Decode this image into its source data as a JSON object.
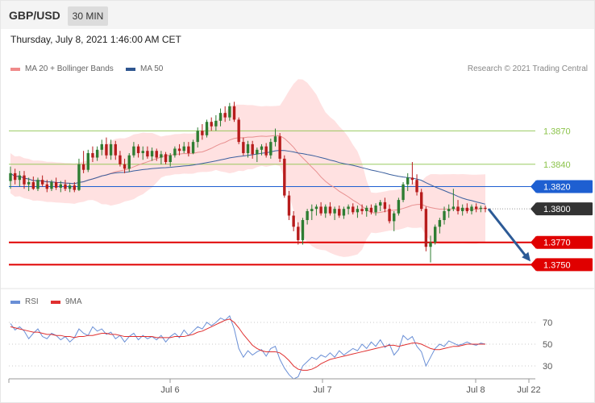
{
  "header": {
    "symbol": "GBP/USD",
    "timeframe": "30 MIN",
    "datetime": "Thursday, July 8, 2021 1:46:00 AM CET"
  },
  "legend": {
    "ma20_label": "MA 20 + Bollinger Bands",
    "ma50_label": "MA 50",
    "rsi_label": "RSI",
    "ma9_label": "9MA",
    "credit": "Research © 2021 Trading Central"
  },
  "colors": {
    "up": "#2e7d32",
    "down": "#b71c1c",
    "band": "#ffd7d7",
    "ma20": "#e89090",
    "ma50": "#3a5f9e",
    "support": "#e00000",
    "resistance_green": "#8bc34a",
    "pivot_blue": "#1e5fd1",
    "current": "#333333",
    "rsi": "#6a8fd6",
    "rsi_ma": "#e03030",
    "arrow": "#2c5a96"
  },
  "chart_data": {
    "type": "candlestick",
    "price_levels": [
      {
        "value": 1.387,
        "label": "1.3870",
        "kind": "resistance"
      },
      {
        "value": 1.384,
        "label": "1.3840",
        "kind": "resistance"
      },
      {
        "value": 1.382,
        "label": "1.3820",
        "kind": "pivot"
      },
      {
        "value": 1.38,
        "label": "1.3800",
        "kind": "current"
      },
      {
        "value": 1.377,
        "label": "1.3770",
        "kind": "support"
      },
      {
        "value": 1.375,
        "label": "1.3750",
        "kind": "support"
      }
    ],
    "y_range": [
      1.3738,
      1.3915
    ],
    "x_ticks": [
      "Jul 6",
      "Jul 7",
      "Jul 8",
      "Jul 22"
    ],
    "candles": [
      [
        1.3825,
        1.3838,
        1.3818,
        1.3832
      ],
      [
        1.3832,
        1.3836,
        1.3822,
        1.3826
      ],
      [
        1.3826,
        1.3834,
        1.382,
        1.383
      ],
      [
        1.383,
        1.3834,
        1.3818,
        1.3822
      ],
      [
        1.3822,
        1.3828,
        1.3816,
        1.3824
      ],
      [
        1.3824,
        1.3829,
        1.3817,
        1.3818
      ],
      [
        1.3818,
        1.3828,
        1.3816,
        1.3826
      ],
      [
        1.3826,
        1.383,
        1.382,
        1.3822
      ],
      [
        1.3822,
        1.3826,
        1.3815,
        1.3818
      ],
      [
        1.3818,
        1.3826,
        1.3816,
        1.3824
      ],
      [
        1.3824,
        1.3828,
        1.3817,
        1.3819
      ],
      [
        1.3819,
        1.3825,
        1.3815,
        1.3822
      ],
      [
        1.3822,
        1.3826,
        1.3816,
        1.3818
      ],
      [
        1.3818,
        1.3823,
        1.3815,
        1.3821
      ],
      [
        1.3821,
        1.3824,
        1.3815,
        1.3817
      ],
      [
        1.3817,
        1.3845,
        1.3816,
        1.384
      ],
      [
        1.384,
        1.3852,
        1.3832,
        1.3835
      ],
      [
        1.3835,
        1.3853,
        1.3833,
        1.385
      ],
      [
        1.385,
        1.3856,
        1.3842,
        1.3846
      ],
      [
        1.3846,
        1.3856,
        1.3843,
        1.3853
      ],
      [
        1.3853,
        1.3862,
        1.3848,
        1.3858
      ],
      [
        1.3858,
        1.3864,
        1.3845,
        1.3848
      ],
      [
        1.3848,
        1.3862,
        1.3844,
        1.3858
      ],
      [
        1.3858,
        1.3861,
        1.3844,
        1.3848
      ],
      [
        1.3848,
        1.3852,
        1.3838,
        1.384
      ],
      [
        1.384,
        1.3845,
        1.3832,
        1.3836
      ],
      [
        1.3836,
        1.385,
        1.3833,
        1.3848
      ],
      [
        1.3848,
        1.386,
        1.3846,
        1.3856
      ],
      [
        1.3856,
        1.3858,
        1.3846,
        1.385
      ],
      [
        1.385,
        1.3856,
        1.3844,
        1.3852
      ],
      [
        1.3852,
        1.3856,
        1.3845,
        1.3847
      ],
      [
        1.3847,
        1.3855,
        1.3843,
        1.3852
      ],
      [
        1.3852,
        1.3854,
        1.3843,
        1.3846
      ],
      [
        1.3846,
        1.3852,
        1.384,
        1.3849
      ],
      [
        1.3849,
        1.3851,
        1.384,
        1.3842
      ],
      [
        1.3842,
        1.385,
        1.3838,
        1.3848
      ],
      [
        1.3848,
        1.3856,
        1.3846,
        1.3854
      ],
      [
        1.3854,
        1.3858,
        1.3848,
        1.3852
      ],
      [
        1.3852,
        1.386,
        1.385,
        1.3856
      ],
      [
        1.3856,
        1.386,
        1.3847,
        1.385
      ],
      [
        1.385,
        1.3862,
        1.3849,
        1.386
      ],
      [
        1.386,
        1.3873,
        1.3855,
        1.387
      ],
      [
        1.387,
        1.3876,
        1.3862,
        1.3866
      ],
      [
        1.3866,
        1.388,
        1.3864,
        1.3878
      ],
      [
        1.3878,
        1.3882,
        1.387,
        1.3874
      ],
      [
        1.3874,
        1.3884,
        1.387,
        1.3879
      ],
      [
        1.3879,
        1.389,
        1.3874,
        1.3886
      ],
      [
        1.3886,
        1.3892,
        1.3878,
        1.3882
      ],
      [
        1.3882,
        1.3895,
        1.3879,
        1.3892
      ],
      [
        1.3892,
        1.3896,
        1.3878,
        1.388
      ],
      [
        1.388,
        1.3882,
        1.3858,
        1.386
      ],
      [
        1.386,
        1.3864,
        1.3848,
        1.385
      ],
      [
        1.385,
        1.3861,
        1.3846,
        1.3858
      ],
      [
        1.3858,
        1.3861,
        1.3845,
        1.3849
      ],
      [
        1.3849,
        1.3855,
        1.3842,
        1.3853
      ],
      [
        1.3853,
        1.3858,
        1.3848,
        1.3856
      ],
      [
        1.3856,
        1.3859,
        1.3846,
        1.3848
      ],
      [
        1.3848,
        1.3863,
        1.3845,
        1.386
      ],
      [
        1.386,
        1.3872,
        1.3856,
        1.3865
      ],
      [
        1.3865,
        1.3868,
        1.3842,
        1.3845
      ],
      [
        1.3845,
        1.3848,
        1.381,
        1.3812
      ],
      [
        1.3812,
        1.3816,
        1.379,
        1.3794
      ],
      [
        1.3794,
        1.3798,
        1.378,
        1.3784
      ],
      [
        1.3784,
        1.3788,
        1.3768,
        1.3772
      ],
      [
        1.3772,
        1.3792,
        1.3768,
        1.379
      ],
      [
        1.379,
        1.38,
        1.3786,
        1.3798
      ],
      [
        1.3798,
        1.3804,
        1.379,
        1.38
      ],
      [
        1.38,
        1.3804,
        1.3794,
        1.3802
      ],
      [
        1.3802,
        1.3806,
        1.3794,
        1.3796
      ],
      [
        1.3796,
        1.3804,
        1.3792,
        1.3802
      ],
      [
        1.3802,
        1.3806,
        1.3794,
        1.3796
      ],
      [
        1.3796,
        1.3802,
        1.379,
        1.38
      ],
      [
        1.38,
        1.3803,
        1.3792,
        1.3794
      ],
      [
        1.3794,
        1.3802,
        1.3791,
        1.38
      ],
      [
        1.38,
        1.3804,
        1.3795,
        1.3802
      ],
      [
        1.3802,
        1.3805,
        1.3795,
        1.3797
      ],
      [
        1.3797,
        1.3803,
        1.3792,
        1.38
      ],
      [
        1.38,
        1.3804,
        1.3795,
        1.3798
      ],
      [
        1.3798,
        1.3803,
        1.3793,
        1.3801
      ],
      [
        1.3801,
        1.3804,
        1.3795,
        1.3797
      ],
      [
        1.3797,
        1.3805,
        1.3794,
        1.3803
      ],
      [
        1.3803,
        1.3808,
        1.3798,
        1.3806
      ],
      [
        1.3806,
        1.381,
        1.3797,
        1.38
      ],
      [
        1.38,
        1.3804,
        1.3787,
        1.3789
      ],
      [
        1.3789,
        1.3798,
        1.378,
        1.3796
      ],
      [
        1.3796,
        1.381,
        1.3794,
        1.3808
      ],
      [
        1.3808,
        1.3824,
        1.3806,
        1.3822
      ],
      [
        1.3822,
        1.3832,
        1.3816,
        1.3828
      ],
      [
        1.3828,
        1.3842,
        1.3822,
        1.3826
      ],
      [
        1.3826,
        1.3831,
        1.3812,
        1.3815
      ],
      [
        1.3815,
        1.3818,
        1.3798,
        1.38
      ],
      [
        1.38,
        1.3802,
        1.3762,
        1.3766
      ],
      [
        1.3766,
        1.3776,
        1.3752,
        1.377
      ],
      [
        1.377,
        1.3786,
        1.3768,
        1.3784
      ],
      [
        1.3784,
        1.3792,
        1.3778,
        1.379
      ],
      [
        1.379,
        1.3802,
        1.3786,
        1.3798
      ],
      [
        1.3798,
        1.3804,
        1.3792,
        1.38
      ],
      [
        1.38,
        1.3818,
        1.3798,
        1.3802
      ],
      [
        1.3802,
        1.3808,
        1.3795,
        1.3798
      ],
      [
        1.3798,
        1.3804,
        1.3794,
        1.3801
      ],
      [
        1.3801,
        1.3805,
        1.3796,
        1.3798
      ],
      [
        1.3798,
        1.3804,
        1.3795,
        1.3802
      ],
      [
        1.3802,
        1.3805,
        1.3797,
        1.38
      ],
      [
        1.38,
        1.3803,
        1.3797,
        1.3801
      ],
      [
        1.3801,
        1.3803,
        1.3797,
        1.38
      ]
    ],
    "rsi": {
      "axis_ticks": [
        70,
        50,
        30
      ],
      "rsi_values": [
        69,
        63,
        66,
        62,
        55,
        60,
        64,
        57,
        55,
        60,
        58,
        54,
        57,
        52,
        56,
        64,
        60,
        58,
        66,
        62,
        64,
        59,
        61,
        55,
        58,
        52,
        57,
        60,
        54,
        58,
        55,
        57,
        54,
        58,
        52,
        57,
        60,
        56,
        63,
        58,
        62,
        66,
        64,
        70,
        67,
        70,
        74,
        72,
        76,
        64,
        46,
        38,
        44,
        40,
        43,
        45,
        39,
        46,
        48,
        36,
        28,
        22,
        18,
        20,
        30,
        34,
        38,
        36,
        40,
        38,
        42,
        38,
        44,
        40,
        43,
        46,
        44,
        50,
        46,
        52,
        48,
        54,
        47,
        50,
        40,
        45,
        58,
        54,
        57,
        48,
        43,
        30,
        38,
        46,
        50,
        48,
        53,
        51,
        49,
        50,
        52,
        50,
        49,
        51,
        50
      ],
      "ma_values": [
        66,
        65,
        64,
        63,
        62,
        61,
        61,
        60,
        59,
        59,
        58,
        58,
        57,
        57,
        56,
        57,
        57,
        58,
        58,
        59,
        60,
        60,
        59,
        59,
        58,
        57,
        57,
        57,
        57,
        57,
        57,
        57,
        56,
        56,
        56,
        56,
        57,
        57,
        57,
        58,
        59,
        61,
        62,
        64,
        66,
        68,
        70,
        72,
        73,
        70,
        65,
        59,
        54,
        49,
        46,
        44,
        43,
        43,
        43,
        42,
        39,
        35,
        30,
        27,
        26,
        26,
        27,
        29,
        32,
        34,
        36,
        37,
        38,
        39,
        40,
        41,
        42,
        43,
        44,
        45,
        46,
        47,
        48,
        49,
        49,
        48,
        49,
        50,
        51,
        51,
        50,
        48,
        46,
        45,
        45,
        46,
        47,
        48,
        48,
        49,
        50,
        50,
        50,
        50,
        50
      ]
    }
  }
}
